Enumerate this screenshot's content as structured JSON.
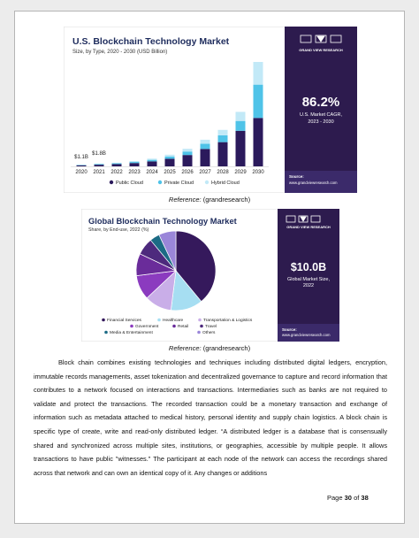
{
  "figure_1": {
    "chart_data": {
      "type": "stacked_bar",
      "title": "U.S. Blockchain Technology Market",
      "subtitle": "Size, by Type, 2020 - 2030 (USD Billion)",
      "categories": [
        "2020",
        "2021",
        "2022",
        "2023",
        "2024",
        "2025",
        "2026",
        "2027",
        "2028",
        "2029",
        "2030"
      ],
      "series": [
        {
          "name": "Public Cloud",
          "color": "#2b1a5c",
          "values": [
            0.7,
            1.1,
            1.5,
            2.2,
            3.3,
            5,
            7.5,
            11.5,
            16,
            23.5,
            32
          ]
        },
        {
          "name": "Private Cloud",
          "color": "#4fc3e8",
          "values": [
            0.2,
            0.4,
            0.5,
            0.7,
            1,
            1.5,
            2.3,
            3.4,
            4.5,
            6.5,
            22
          ]
        },
        {
          "name": "Hybrid Cloud",
          "color": "#c2e9f7",
          "values": [
            0.2,
            0.3,
            0.4,
            0.6,
            0.8,
            1.2,
            1.8,
            2.7,
            3.6,
            6,
            15
          ]
        }
      ],
      "value_labels": [
        "$1.1B",
        "$1.8B"
      ]
    },
    "sidebar": {
      "brand": "GRAND VIEW RESEARCH",
      "stat": "86.2%",
      "stat_label_1": "U.S. Market CAGR,",
      "stat_label_2": "2023 - 2030",
      "source_label": "Source:",
      "source_url": "www.grandviewresearch.com"
    },
    "reference": {
      "label": "Reference:",
      "text": "(grandresearch)"
    }
  },
  "figure_2": {
    "chart_data": {
      "type": "pie",
      "title": "Global Blockchain Technology Market",
      "subtitle": "Share, by End-use, 2022 (%)",
      "categories": [
        "Financial Services",
        "Healthcare",
        "Transportation & Logistics",
        "Government",
        "Retail",
        "Travel",
        "Media & Entertainment",
        "Others"
      ],
      "values": [
        39,
        13,
        11,
        10,
        9,
        7,
        4,
        7
      ],
      "colors": [
        "#35195c",
        "#a6def2",
        "#c9aee8",
        "#8b3bbf",
        "#6a2c9a",
        "#4d2a7d",
        "#1c6b85",
        "#9a86d9"
      ]
    },
    "sidebar": {
      "brand": "GRAND VIEW RESEARCH",
      "stat": "$10.0B",
      "stat_label_1": "Global Market Size,",
      "stat_label_2": "2022",
      "source_label": "Source:",
      "source_url": "www.grandviewresearch.com"
    },
    "reference": {
      "label": "Reference:",
      "text": "(grandresearch)"
    }
  },
  "paragraph": "Block chain combines existing technologies and techniques including distributed digital ledgers, encryption, immutable records managements, asset tokenization and decentralized governance to capture and record information that contributes to a network focused on interactions and transactions.  Intermediaries such as banks are not required to validate and protect the transactions.  The recorded transaction could be a monetary transaction and exchange of information such as metadata attached to medical history, personal identity and supply chain logistics.  A block chain is specific type of create, write and read-only distributed ledger.  “A distributed ledger is a database that is consensually shared and synchronized across multiple sites, institutions, or geographies, accessible by multiple people. It allows transactions to have public \"witnesses.\" The participant at each node of the network can access the recordings shared across that network and can own an identical copy of it. Any changes or additions",
  "footer": {
    "page_word": "Page",
    "page": "30",
    "of_word": "of",
    "total": "38"
  }
}
